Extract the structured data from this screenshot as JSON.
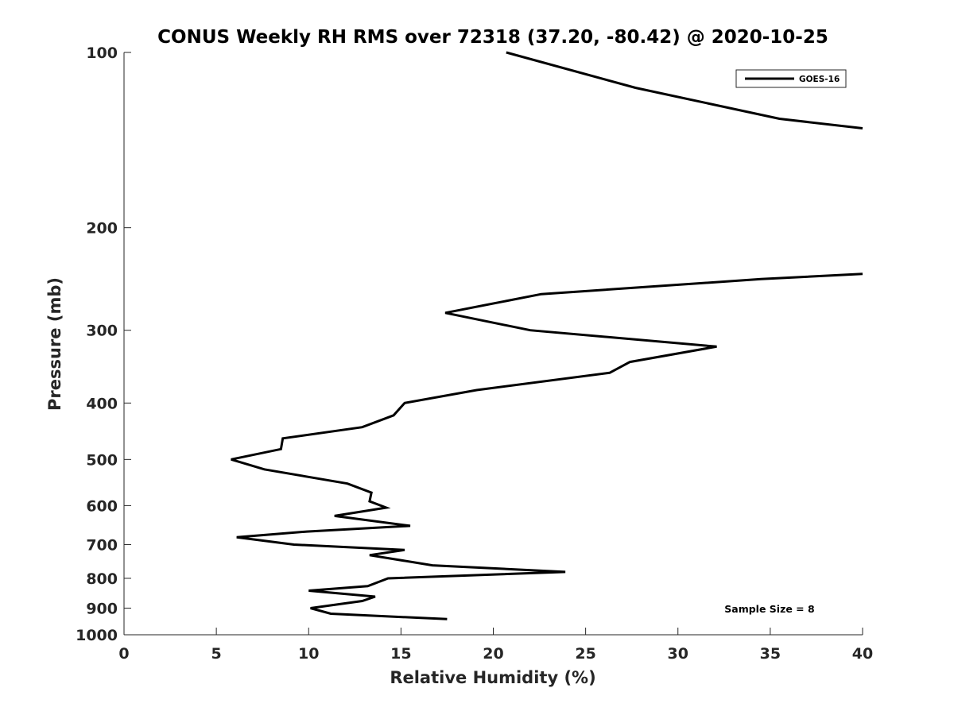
{
  "chart_data": {
    "type": "line",
    "title": "CONUS Weekly RH RMS over 72318 (37.20, -80.42) @ 2020-10-25",
    "xlabel": "Relative Humidity (%)",
    "ylabel": "Pressure (mb)",
    "xlim": [
      0,
      40
    ],
    "ylim": [
      100,
      1000
    ],
    "y_scale": "log",
    "y_reversed": true,
    "grid": false,
    "legend_position": "top-right",
    "x_ticks": [
      "0",
      "5",
      "10",
      "15",
      "20",
      "25",
      "30",
      "35",
      "40"
    ],
    "y_ticks": [
      "100",
      "200",
      "300",
      "400",
      "500",
      "600",
      "700",
      "800",
      "900",
      "1000"
    ],
    "series": [
      {
        "name": "GOES-16",
        "color": "#000000",
        "segments": [
          [
            {
              "x": 20.7,
              "y": 100
            },
            {
              "x": 27.7,
              "y": 115
            },
            {
              "x": 35.5,
              "y": 130
            },
            {
              "x": 40,
              "y": 135
            }
          ],
          [
            {
              "x": 40,
              "y": 240
            },
            {
              "x": 34.5,
              "y": 245
            },
            {
              "x": 22.6,
              "y": 260
            },
            {
              "x": 17.4,
              "y": 280
            },
            {
              "x": 22,
              "y": 300
            },
            {
              "x": 32.1,
              "y": 320
            },
            {
              "x": 27.4,
              "y": 340
            },
            {
              "x": 26.3,
              "y": 355
            },
            {
              "x": 19.1,
              "y": 380
            },
            {
              "x": 15.2,
              "y": 400
            },
            {
              "x": 14.6,
              "y": 420
            },
            {
              "x": 12.9,
              "y": 440
            },
            {
              "x": 8.6,
              "y": 460
            },
            {
              "x": 8.5,
              "y": 480
            },
            {
              "x": 5.8,
              "y": 500
            },
            {
              "x": 7.6,
              "y": 520
            },
            {
              "x": 12.1,
              "y": 550
            },
            {
              "x": 13.4,
              "y": 570
            },
            {
              "x": 13.3,
              "y": 590
            },
            {
              "x": 14.2,
              "y": 605
            },
            {
              "x": 11.4,
              "y": 625
            },
            {
              "x": 15.5,
              "y": 650
            },
            {
              "x": 9.9,
              "y": 665
            },
            {
              "x": 6.1,
              "y": 680
            },
            {
              "x": 9.2,
              "y": 700
            },
            {
              "x": 15.2,
              "y": 715
            },
            {
              "x": 13.3,
              "y": 730
            },
            {
              "x": 16.7,
              "y": 760
            },
            {
              "x": 23.9,
              "y": 780
            },
            {
              "x": 14.3,
              "y": 800
            },
            {
              "x": 13.2,
              "y": 825
            },
            {
              "x": 10,
              "y": 840
            },
            {
              "x": 13.6,
              "y": 860
            },
            {
              "x": 12.9,
              "y": 875
            },
            {
              "x": 10.1,
              "y": 900
            },
            {
              "x": 11.2,
              "y": 920
            },
            {
              "x": 17.5,
              "y": 940
            }
          ]
        ]
      }
    ],
    "annotations": [
      {
        "text": "Sample Size = 8",
        "position": "bottom-right"
      }
    ]
  }
}
